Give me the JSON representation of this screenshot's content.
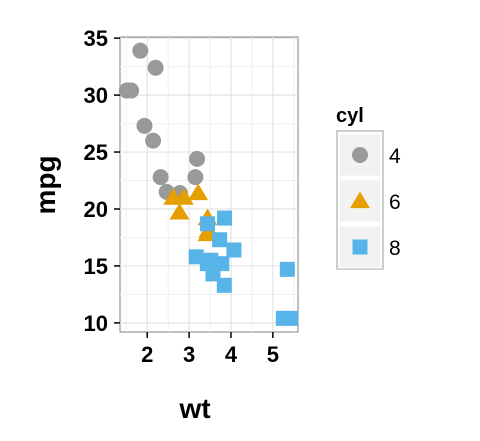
{
  "chart_data": {
    "type": "scatter",
    "xlabel": "wt",
    "ylabel": "mpg",
    "xlim": [
      1.35,
      5.6
    ],
    "ylim": [
      9.2,
      35.1
    ],
    "x_ticks": [
      2,
      3,
      4,
      5
    ],
    "y_ticks": [
      10,
      15,
      20,
      25,
      30,
      35
    ],
    "x_tick_labels": [
      "2",
      "3",
      "4",
      "5"
    ],
    "y_tick_labels": [
      "10",
      "15",
      "20",
      "25",
      "30",
      "35"
    ],
    "grid": true,
    "legend": {
      "title": "cyl",
      "position": "right",
      "entries": [
        "4",
        "6",
        "8"
      ]
    },
    "series": [
      {
        "name": "4",
        "shape": "circle",
        "color": "#999999",
        "points": [
          [
            2.32,
            22.8
          ],
          [
            3.19,
            24.4
          ],
          [
            3.15,
            22.8
          ],
          [
            2.2,
            32.4
          ],
          [
            1.615,
            30.4
          ],
          [
            1.835,
            33.9
          ],
          [
            2.465,
            21.5
          ],
          [
            1.935,
            27.3
          ],
          [
            2.14,
            26.0
          ],
          [
            1.513,
            30.4
          ],
          [
            2.78,
            21.4
          ]
        ]
      },
      {
        "name": "6",
        "shape": "triangle",
        "color": "#E69F00",
        "points": [
          [
            2.62,
            21.0
          ],
          [
            2.875,
            21.0
          ],
          [
            3.215,
            21.4
          ],
          [
            3.46,
            18.1
          ],
          [
            3.44,
            19.2
          ],
          [
            3.44,
            17.8
          ],
          [
            2.77,
            19.7
          ]
        ]
      },
      {
        "name": "8",
        "shape": "square",
        "color": "#56B4E9",
        "points": [
          [
            3.44,
            18.7
          ],
          [
            3.57,
            14.3
          ],
          [
            4.07,
            16.4
          ],
          [
            3.73,
            17.3
          ],
          [
            3.78,
            15.2
          ],
          [
            5.25,
            10.4
          ],
          [
            5.424,
            10.4
          ],
          [
            5.345,
            14.7
          ],
          [
            3.52,
            15.5
          ],
          [
            3.435,
            15.2
          ],
          [
            3.84,
            13.3
          ],
          [
            3.845,
            19.2
          ],
          [
            3.17,
            15.8
          ],
          [
            3.57,
            15.0
          ]
        ]
      }
    ]
  }
}
